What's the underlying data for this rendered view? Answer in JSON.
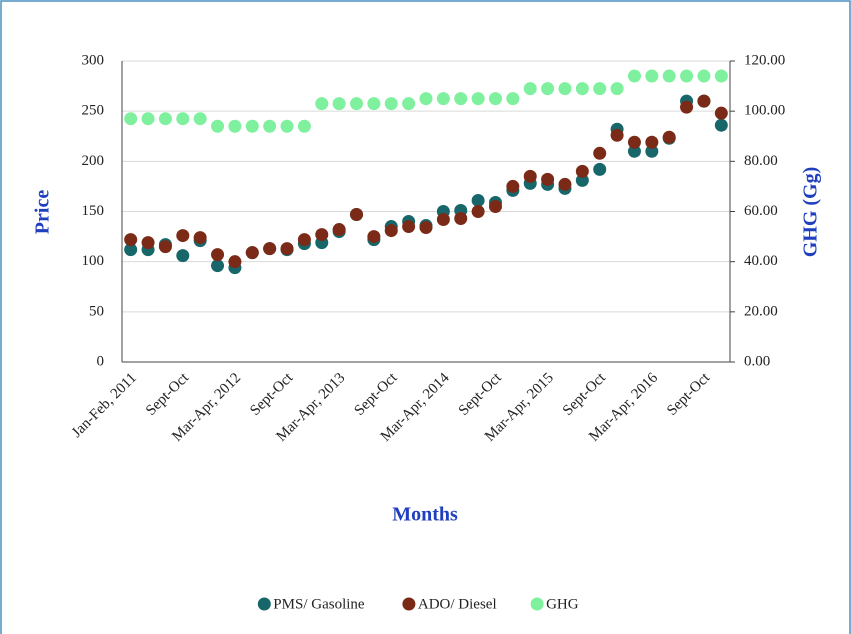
{
  "chart_data": {
    "type": "scatter",
    "x_label": "Months",
    "y_label": "Price",
    "y2_label": "GHG (Gg)",
    "categories": [
      "Jan-Feb, 2011",
      null,
      null,
      "Sept-Oct",
      null,
      null,
      "Mar-Apr, 2012",
      null,
      null,
      "Sept-Oct",
      null,
      null,
      "Mar-Apr, 2013",
      null,
      null,
      "Sept-Oct",
      null,
      null,
      "Mar-Apr, 2014",
      null,
      null,
      "Sept-Oct",
      null,
      null,
      "Mar-Apr, 2015",
      null,
      null,
      "Sept-Oct",
      null,
      null,
      "Mar-Apr, 2016",
      null,
      null,
      "Sept-Oct",
      null
    ],
    "ylim": [
      0,
      300
    ],
    "yticks": [
      0,
      50,
      100,
      150,
      200,
      250,
      300
    ],
    "y2lim": [
      0,
      120
    ],
    "y2ticks": [
      {
        "value": 0,
        "label": "0.00"
      },
      {
        "value": 20,
        "label": "20.00"
      },
      {
        "value": 40,
        "label": "40.00"
      },
      {
        "value": 60,
        "label": "60.00"
      },
      {
        "value": 80,
        "label": "80.00"
      },
      {
        "value": 100,
        "label": "100.00"
      },
      {
        "value": 120,
        "label": "120.00"
      }
    ],
    "legend": "bottom",
    "series": [
      {
        "name": "PMS/ Gasoline",
        "color": "#17676a",
        "values": [
          112,
          112,
          117,
          106,
          121,
          96,
          94,
          109,
          113,
          112,
          118,
          119,
          130,
          147,
          122,
          135,
          140,
          136,
          150,
          151,
          161,
          159,
          171,
          178,
          177,
          173,
          181,
          192,
          232,
          210,
          210,
          223,
          260,
          260,
          236
        ]
      },
      {
        "name": "ADO/ Diesel",
        "color": "#7b2a17",
        "values": [
          122,
          119,
          115,
          126,
          124,
          107,
          100,
          109,
          113,
          113,
          122,
          127,
          132,
          147,
          125,
          131,
          135,
          134,
          142,
          143,
          150,
          155,
          175,
          185,
          182,
          177,
          190,
          208,
          226,
          219,
          219,
          224,
          254,
          260,
          248
        ]
      },
      {
        "name": "GHG",
        "color": "#7ef09e",
        "axis": "y2",
        "values": [
          97,
          97,
          97,
          97,
          97,
          94,
          94,
          94,
          94,
          94,
          94,
          103,
          103,
          103,
          103,
          103,
          103,
          105,
          105,
          105,
          105,
          105,
          105,
          109,
          109,
          109,
          109,
          109,
          109,
          114,
          114,
          114,
          114,
          114,
          114
        ]
      }
    ]
  }
}
